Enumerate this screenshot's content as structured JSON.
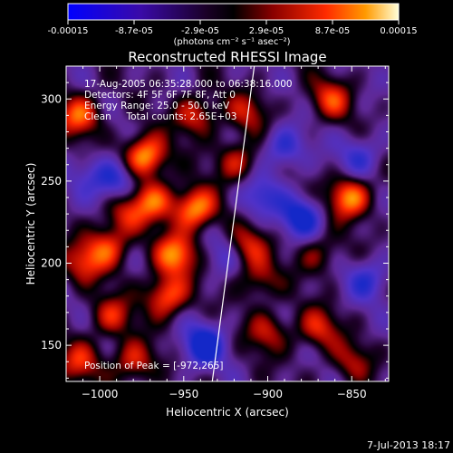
{
  "colorbar": {
    "ticks": [
      "-0.00015",
      "-8.7e-05",
      "-2.9e-05",
      "2.9e-05",
      "8.7e-05",
      "0.00015"
    ],
    "unit": "(photons cm⁻² s⁻¹ asec⁻²)",
    "range": [
      -0.00015,
      0.00015
    ]
  },
  "chart_data": {
    "type": "heatmap",
    "title": "Reconstructed RHESSI Image",
    "xlabel": "Heliocentric X (arcsec)",
    "ylabel": "Heliocentric Y (arcsec)",
    "xlim": [
      -1020,
      -828
    ],
    "ylim": [
      128,
      320
    ],
    "xticks": [
      -1000,
      -950,
      -900,
      -850
    ],
    "xtick_labels": [
      "−1000",
      "−950",
      "−900",
      "−850"
    ],
    "yticks": [
      150,
      200,
      250,
      300
    ],
    "ytick_labels": [
      "150",
      "200",
      "250",
      "300"
    ],
    "limb_line": {
      "x": [
        -933,
        -908
      ],
      "y": [
        128,
        320
      ]
    },
    "annotations": [
      "17-Aug-2005 06:35:28.000 to 06:38:16.000",
      "Detectors: 4F 5F 6F 7F 8F, Att 0",
      "Energy Range: 25.0 - 50.0 keV",
      "Clean     Total counts: 2.65E+03"
    ],
    "peak_label": "Position of Peak = [-972,265]",
    "sources": [
      {
        "x": -973,
        "y": 265,
        "w": 1.0
      },
      {
        "x": -943,
        "y": 233,
        "w": 0.95
      },
      {
        "x": -955,
        "y": 205,
        "w": 0.85
      },
      {
        "x": -968,
        "y": 238,
        "w": 0.7
      },
      {
        "x": -995,
        "y": 210,
        "w": 0.65
      },
      {
        "x": -985,
        "y": 230,
        "w": 0.5
      },
      {
        "x": -960,
        "y": 180,
        "w": 0.8
      },
      {
        "x": -993,
        "y": 168,
        "w": 0.55
      },
      {
        "x": -1012,
        "y": 290,
        "w": 0.75
      },
      {
        "x": -1010,
        "y": 200,
        "w": 0.55
      },
      {
        "x": -1012,
        "y": 140,
        "w": 0.55
      },
      {
        "x": -980,
        "y": 140,
        "w": 0.6
      },
      {
        "x": -943,
        "y": 290,
        "w": 0.6
      },
      {
        "x": -912,
        "y": 292,
        "w": 0.45
      },
      {
        "x": -918,
        "y": 262,
        "w": 0.55
      },
      {
        "x": -913,
        "y": 210,
        "w": 0.6
      },
      {
        "x": -905,
        "y": 190,
        "w": 0.45
      },
      {
        "x": -900,
        "y": 158,
        "w": 0.5
      },
      {
        "x": -870,
        "y": 160,
        "w": 0.55
      },
      {
        "x": -851,
        "y": 240,
        "w": 0.9
      },
      {
        "x": -862,
        "y": 300,
        "w": 0.6
      },
      {
        "x": -870,
        "y": 205,
        "w": 0.4
      },
      {
        "x": -850,
        "y": 140,
        "w": 0.4
      },
      {
        "x": -905,
        "y": 240,
        "w": -0.5
      },
      {
        "x": -938,
        "y": 150,
        "w": -0.8
      },
      {
        "x": -990,
        "y": 250,
        "w": -0.6
      },
      {
        "x": -880,
        "y": 228,
        "w": -0.7
      },
      {
        "x": -840,
        "y": 190,
        "w": -0.5
      },
      {
        "x": -845,
        "y": 265,
        "w": -0.45
      },
      {
        "x": -890,
        "y": 270,
        "w": -0.55
      },
      {
        "x": -1005,
        "y": 255,
        "w": -0.3
      },
      {
        "x": -925,
        "y": 205,
        "w": -0.35
      }
    ],
    "background_level": -0.3
  },
  "footer": {
    "timestamp": "7-Jul-2013 18:17"
  }
}
